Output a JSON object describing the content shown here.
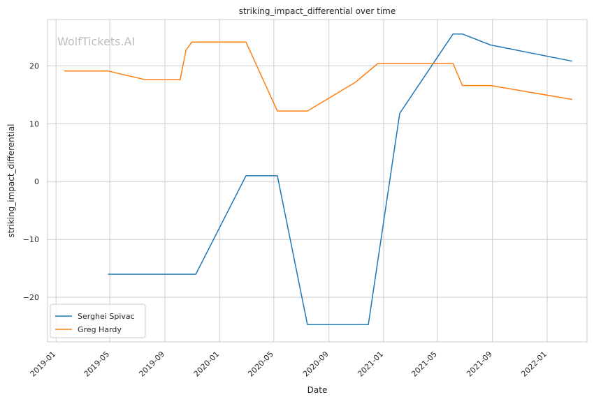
{
  "chart_data": {
    "type": "line",
    "title": "striking_impact_differential over time",
    "xlabel": "Date",
    "ylabel": "striking_impact_differential",
    "watermark": "WolfTickets.AI",
    "grid": true,
    "legend_position": "lower-left",
    "xlim": [
      "2018-12-13",
      "2022-03-31"
    ],
    "ylim": [
      -27.7,
      28.0
    ],
    "x_ticks": [
      "2019-01",
      "2019-05",
      "2019-09",
      "2020-01",
      "2020-05",
      "2020-09",
      "2021-01",
      "2021-05",
      "2021-09",
      "2022-01"
    ],
    "y_ticks": [
      -20,
      -10,
      0,
      10,
      20
    ],
    "y_tick_labels": [
      "−20",
      "−10",
      "0",
      "10",
      "20"
    ],
    "series": [
      {
        "name": "Serghei Spivac",
        "color": "#1f77b4",
        "x": [
          "2019-04-27",
          "2019-11-09",
          "2020-02-29",
          "2020-05-02",
          "2020-05-09",
          "2020-07-15",
          "2020-11-28",
          "2021-02-06",
          "2021-06-05",
          "2021-06-26",
          "2021-08-28",
          "2022-02-26"
        ],
        "y": [
          -16.0,
          -16.0,
          1.0,
          1.0,
          1.0,
          -24.7,
          -24.7,
          11.8,
          25.5,
          25.5,
          23.6,
          20.8
        ]
      },
      {
        "name": "Greg Hardy",
        "color": "#ff7f0e",
        "x": [
          "2019-01-19",
          "2019-04-27",
          "2019-07-20",
          "2019-10-05",
          "2019-10-18",
          "2019-10-31",
          "2020-02-29",
          "2020-05-09",
          "2020-07-15",
          "2020-10-31",
          "2020-12-19",
          "2021-06-05",
          "2021-06-26",
          "2021-08-28",
          "2022-02-26"
        ],
        "y": [
          19.1,
          19.1,
          17.6,
          17.6,
          22.7,
          24.1,
          24.1,
          12.2,
          12.2,
          17.2,
          20.4,
          20.4,
          16.6,
          16.6,
          14.2
        ]
      }
    ]
  }
}
